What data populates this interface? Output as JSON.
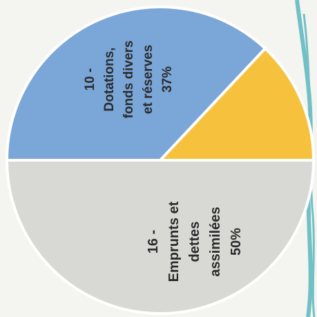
{
  "chart_data": {
    "type": "pie",
    "title": "",
    "orientation": "rotated 90 degrees counter-clockwise",
    "slices": [
      {
        "code": "10 -",
        "lines": [
          "Dotations,",
          "fonds divers",
          "et réserves"
        ],
        "percent_label": "37%",
        "value": 37,
        "color": "#7aa6d8"
      },
      {
        "code": "",
        "lines": [],
        "percent_label": "",
        "value": 13,
        "color": "#f6c23e"
      },
      {
        "code": "16 -",
        "lines": [
          "Emprunts et",
          "dettes",
          "assimilées"
        ],
        "percent_label": "50%",
        "value": 50,
        "color": "#d8d8d5"
      }
    ],
    "decoration": {
      "brush_color": "#5bb8be"
    }
  }
}
